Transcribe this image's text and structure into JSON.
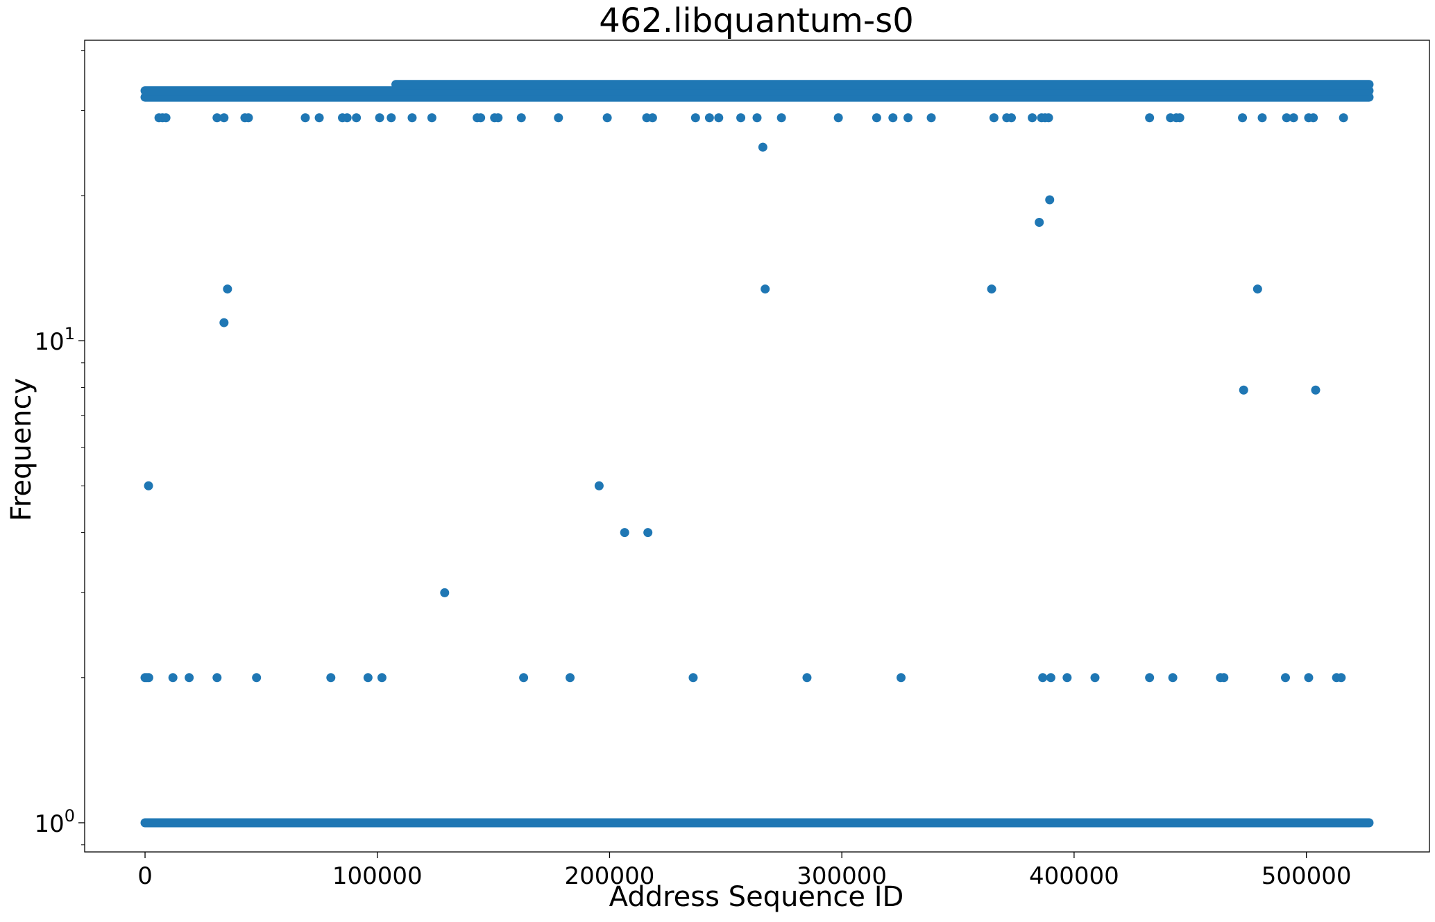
{
  "chart_data": {
    "type": "scatter",
    "title": "462.libquantum-s0",
    "xlabel": "Address Sequence ID",
    "ylabel": "Frequency",
    "y_scale": "log",
    "xlim": [
      -26000,
      553000
    ],
    "ylim": [
      0.87,
      42
    ],
    "x_ticks": [
      0,
      100000,
      200000,
      300000,
      400000,
      500000
    ],
    "x_tick_labels": [
      "0",
      "100000",
      "200000",
      "300000",
      "400000",
      "500000"
    ],
    "y_ticks": [
      1,
      10
    ],
    "y_tick_labels": [
      {
        "base": "10",
        "exp": "0"
      },
      {
        "base": "10",
        "exp": "1"
      }
    ],
    "y_minor_ticks": [
      0.9,
      2,
      3,
      4,
      5,
      6,
      7,
      8,
      9,
      20,
      30,
      40
    ],
    "grid": false,
    "legend": "none",
    "marker_color": "#1f77b4",
    "x_max_data": 527000,
    "bands": [
      {
        "y": 1,
        "x_from": 0,
        "x_to": 527000
      },
      {
        "y": 32,
        "x_from": 0,
        "x_to": 527000
      },
      {
        "y": 33,
        "x_from": 0,
        "x_to": 527000
      },
      {
        "y": 34,
        "x_from": 108000,
        "x_to": 527000
      }
    ],
    "points": [
      [
        1500,
        5
      ],
      [
        0,
        2
      ],
      [
        800,
        2
      ],
      [
        1600,
        2
      ],
      [
        12000,
        2
      ],
      [
        19000,
        2
      ],
      [
        31000,
        2
      ],
      [
        48000,
        2
      ],
      [
        80000,
        2
      ],
      [
        96000,
        2
      ],
      [
        102000,
        2
      ],
      [
        129000,
        3
      ],
      [
        163000,
        2
      ],
      [
        183000,
        2
      ],
      [
        195500,
        5
      ],
      [
        206500,
        4
      ],
      [
        216500,
        4
      ],
      [
        236000,
        2
      ],
      [
        285000,
        2
      ],
      [
        325500,
        2
      ],
      [
        386500,
        2
      ],
      [
        390000,
        2
      ],
      [
        397000,
        2
      ],
      [
        409000,
        2
      ],
      [
        432500,
        2
      ],
      [
        442500,
        2
      ],
      [
        463000,
        2
      ],
      [
        464500,
        2
      ],
      [
        491000,
        2
      ],
      [
        501000,
        2
      ],
      [
        513000,
        2
      ],
      [
        515000,
        2
      ],
      [
        34000,
        10.9
      ],
      [
        35500,
        12.8
      ],
      [
        267000,
        12.8
      ],
      [
        364500,
        12.8
      ],
      [
        479000,
        12.8
      ],
      [
        385000,
        17.6
      ],
      [
        389500,
        19.6
      ],
      [
        473000,
        7.9
      ],
      [
        504000,
        7.9
      ],
      [
        266000,
        25.2
      ],
      [
        6000,
        29
      ],
      [
        7500,
        29
      ],
      [
        9000,
        29
      ],
      [
        31000,
        29
      ],
      [
        34000,
        29
      ],
      [
        43000,
        29
      ],
      [
        44500,
        29
      ],
      [
        69000,
        29
      ],
      [
        75000,
        29
      ],
      [
        85000,
        29
      ],
      [
        87000,
        29
      ],
      [
        91000,
        29
      ],
      [
        101000,
        29
      ],
      [
        106000,
        29
      ],
      [
        115000,
        29
      ],
      [
        123500,
        29
      ],
      [
        143000,
        29
      ],
      [
        144500,
        29
      ],
      [
        150500,
        29
      ],
      [
        152000,
        29
      ],
      [
        162000,
        29
      ],
      [
        178000,
        29
      ],
      [
        199000,
        29
      ],
      [
        216000,
        29
      ],
      [
        218500,
        29
      ],
      [
        237000,
        29
      ],
      [
        243000,
        29
      ],
      [
        247000,
        29
      ],
      [
        256500,
        29
      ],
      [
        263500,
        29
      ],
      [
        274000,
        29
      ],
      [
        298500,
        29
      ],
      [
        315000,
        29
      ],
      [
        322000,
        29
      ],
      [
        328500,
        29
      ],
      [
        338500,
        29
      ],
      [
        365500,
        29
      ],
      [
        371000,
        29
      ],
      [
        373000,
        29
      ],
      [
        382000,
        29
      ],
      [
        386000,
        29
      ],
      [
        387500,
        29
      ],
      [
        389000,
        29
      ],
      [
        432500,
        29
      ],
      [
        441500,
        29
      ],
      [
        444000,
        29
      ],
      [
        445500,
        29
      ],
      [
        472500,
        29
      ],
      [
        481000,
        29
      ],
      [
        491500,
        29
      ],
      [
        494500,
        29
      ],
      [
        501000,
        29
      ],
      [
        503000,
        29
      ],
      [
        516000,
        29
      ]
    ]
  }
}
